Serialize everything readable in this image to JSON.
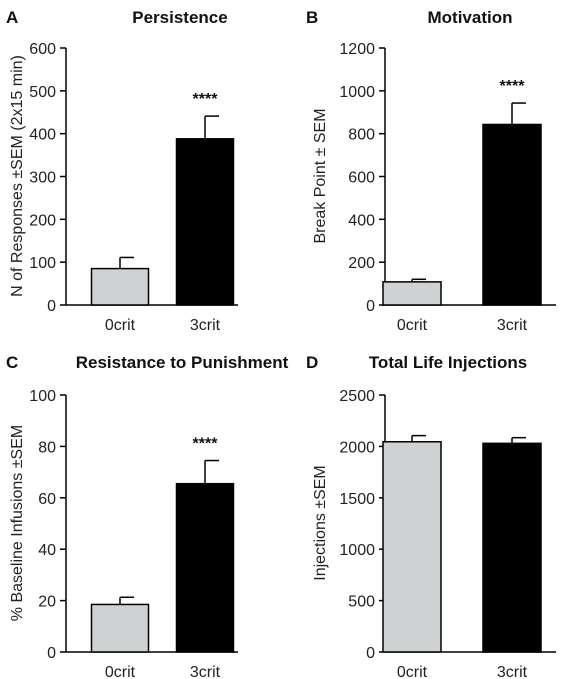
{
  "chart_data": [
    {
      "type": "bar",
      "panel": "A",
      "title": "Persistence",
      "xlabel": "",
      "ylabel": "N of Responses ±SEM (2x15 min)",
      "categories": [
        "0crit",
        "3crit"
      ],
      "values": [
        85,
        388
      ],
      "errors": [
        26,
        53
      ],
      "ylim": [
        0,
        600
      ],
      "yticks": [
        "0",
        "100",
        "200",
        "300",
        "400",
        "500",
        "600"
      ],
      "significance": [
        "",
        "****"
      ],
      "colors": [
        "#cfd2d3",
        "#000000"
      ]
    },
    {
      "type": "bar",
      "panel": "B",
      "title": "Motivation",
      "xlabel": "",
      "ylabel": "Break Point ± SEM",
      "categories": [
        "0crit",
        "3crit"
      ],
      "values": [
        108,
        843
      ],
      "errors": [
        12,
        100
      ],
      "ylim": [
        0,
        1200
      ],
      "yticks": [
        "0",
        "200",
        "400",
        "600",
        "800",
        "1000",
        "1200"
      ],
      "significance": [
        "",
        "****"
      ],
      "colors": [
        "#cfd2d3",
        "#000000"
      ]
    },
    {
      "type": "bar",
      "panel": "C",
      "title": "Resistance to Punishment",
      "xlabel": "",
      "ylabel": "% Baseline Infusions ±SEM",
      "categories": [
        "0crit",
        "3crit"
      ],
      "values": [
        18.5,
        65.5
      ],
      "errors": [
        2.8,
        9
      ],
      "ylim": [
        0,
        100
      ],
      "yticks": [
        "0",
        "20",
        "40",
        "60",
        "80",
        "100"
      ],
      "significance": [
        "",
        "****"
      ],
      "colors": [
        "#cfd2d3",
        "#000000"
      ]
    },
    {
      "type": "bar",
      "panel": "D",
      "title": "Total Life Injections",
      "xlabel": "",
      "ylabel": "Injections ±SEM",
      "categories": [
        "0crit",
        "3crit"
      ],
      "values": [
        2045,
        2030
      ],
      "errors": [
        60,
        55
      ],
      "ylim": [
        0,
        2500
      ],
      "yticks": [
        "0",
        "500",
        "1000",
        "1500",
        "2000",
        "2500"
      ],
      "significance": [
        "",
        ""
      ],
      "colors": [
        "#cfd2d3",
        "#000000"
      ]
    }
  ]
}
